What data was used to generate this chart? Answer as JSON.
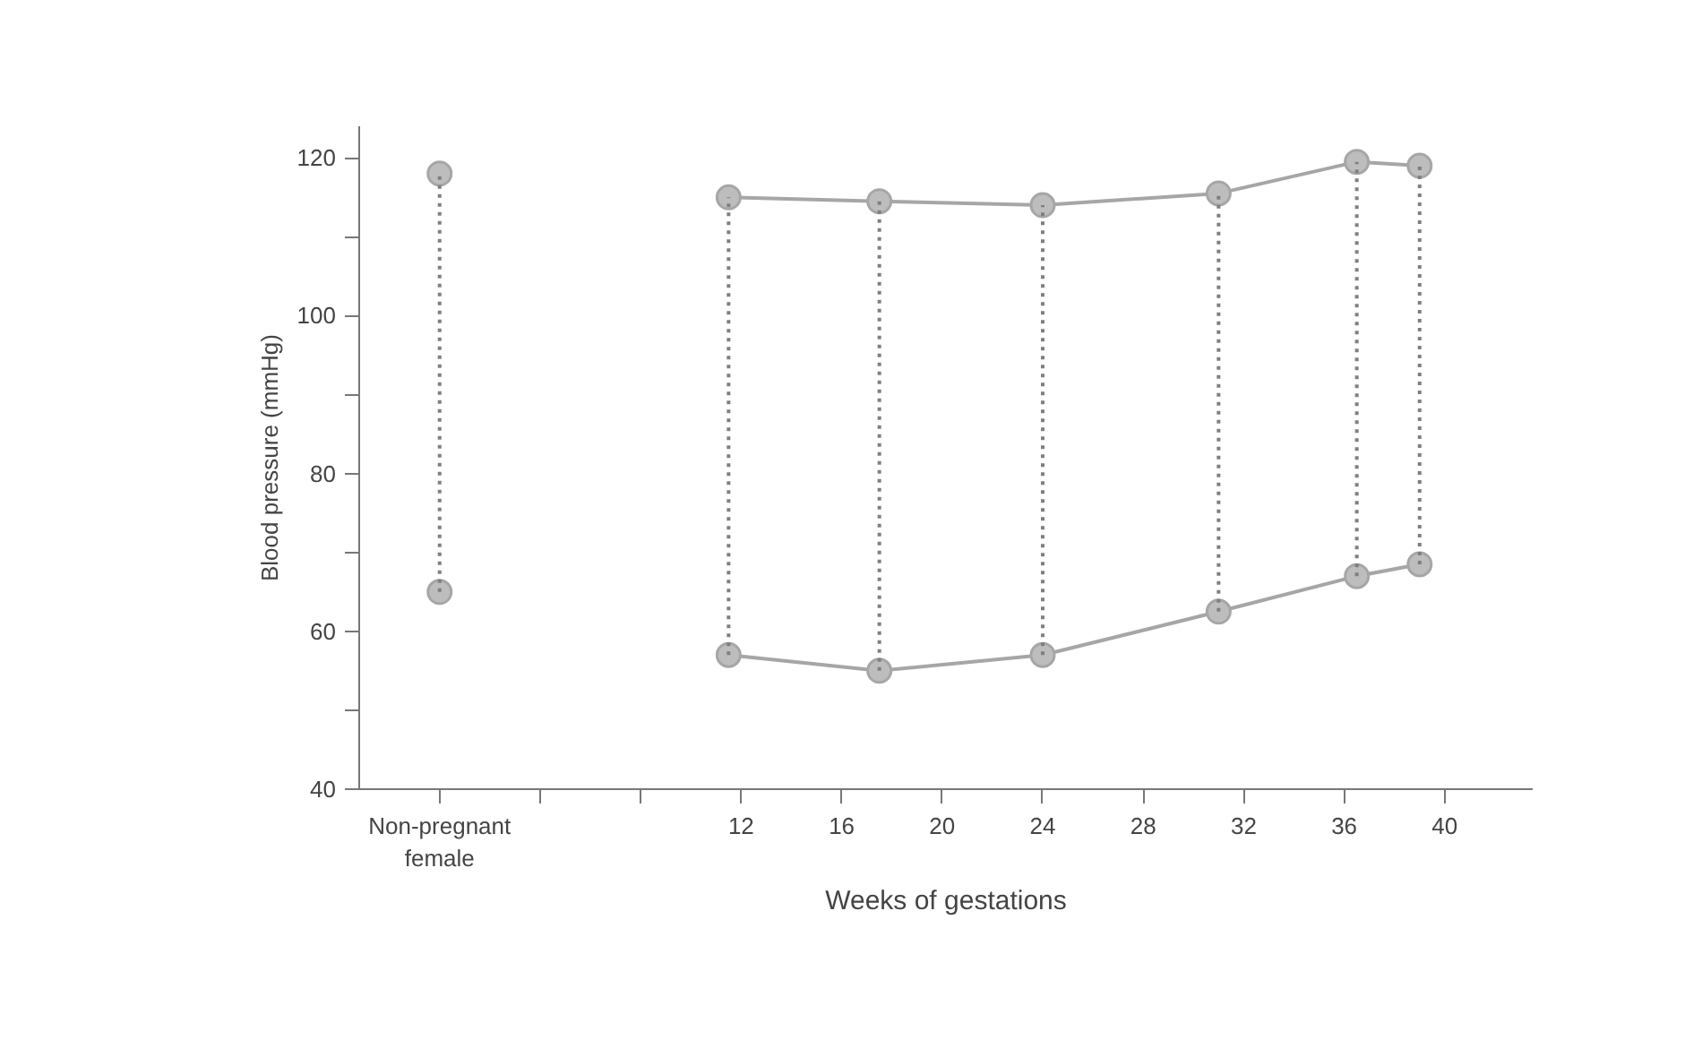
{
  "chart_data": {
    "type": "line",
    "xlabel": "Weeks of gestations",
    "ylabel": "Blood pressure (mmHg)",
    "xlim": [
      -3.2,
      43.5
    ],
    "ylim": [
      40,
      124
    ],
    "xticks": [
      {
        "value": 0,
        "label": "Non-pregnant female"
      },
      {
        "value": 4,
        "label": null
      },
      {
        "value": 8,
        "label": null
      },
      12,
      16,
      20,
      24,
      28,
      32,
      36,
      40
    ],
    "yticks": [
      40,
      {
        "value": 50,
        "label": null
      },
      60,
      {
        "value": 70,
        "label": null
      },
      80,
      {
        "value": 90,
        "label": null
      },
      100,
      {
        "value": 110,
        "label": null
      },
      120
    ],
    "grid": false,
    "marker": "circle",
    "line_style": "solid",
    "series": [
      {
        "color": "#a6a6a6",
        "x": [
          11.5,
          17.5,
          24,
          31,
          36.5,
          39
        ],
        "values": [
          115,
          114.5,
          114,
          115.5,
          119.5,
          119
        ],
        "errors": [
          [
            57,
            115
          ],
          [
            55,
            114.5
          ],
          [
            57,
            114
          ],
          [
            62.5,
            115.5
          ],
          [
            67,
            119.5
          ],
          [
            68.5,
            119
          ]
        ]
      },
      {
        "color": "#a6a6a6",
        "x": [
          11.5,
          17.5,
          24,
          31,
          36.5,
          39
        ],
        "values": [
          57,
          55,
          57,
          62.5,
          67,
          68.5
        ]
      },
      {
        "type": "scatter",
        "color": "#a6a6a6",
        "x": [
          0,
          0
        ],
        "values": [
          118,
          65
        ],
        "errors": [
          [
            65,
            118
          ],
          null
        ]
      }
    ]
  }
}
